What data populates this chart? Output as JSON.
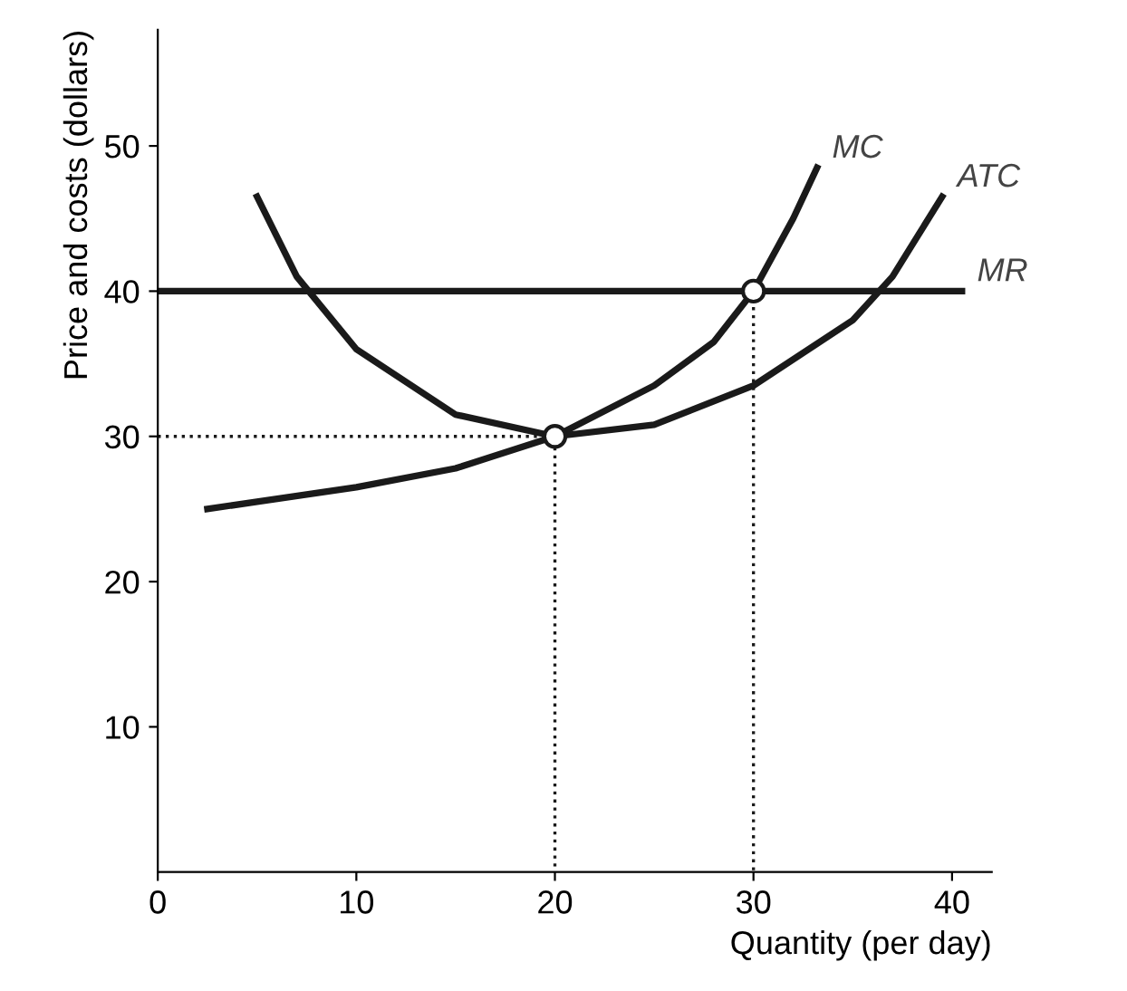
{
  "chart_data": {
    "type": "line",
    "xlabel": "Quantity (per day)",
    "ylabel": "Price and costs (dollars)",
    "xlim": [
      0,
      42
    ],
    "ylim": [
      0,
      58
    ],
    "xticks": [
      0,
      10,
      20,
      30,
      40
    ],
    "yticks": [
      10,
      20,
      30,
      40,
      50
    ],
    "grid": false,
    "legend": false,
    "line_style": "solid",
    "series": [
      {
        "name": "MC",
        "color": "#1a1a1a",
        "x": [
          2.5,
          5,
          10,
          15,
          20,
          25,
          28,
          30,
          32,
          33.2
        ],
        "values": [
          25,
          25.5,
          26.5,
          27.8,
          30,
          33.5,
          36.5,
          40,
          45,
          48.5
        ]
      },
      {
        "name": "ATC",
        "color": "#1a1a1a",
        "x": [
          5,
          7,
          10,
          15,
          20,
          25,
          30,
          35,
          37,
          39.5
        ],
        "values": [
          46.5,
          41,
          36,
          31.5,
          30,
          30.8,
          33.5,
          38,
          41,
          46.5
        ]
      },
      {
        "name": "MR",
        "color": "#1a1a1a",
        "x": [
          0,
          40.5
        ],
        "values": [
          40,
          40
        ]
      },
      {
        "color": "#1a1a1a",
        "line_style": "dotted",
        "x": [
          0,
          20,
          20
        ],
        "values": [
          30,
          30,
          0
        ]
      },
      {
        "color": "#1a1a1a",
        "line_style": "dotted",
        "x": [
          30,
          30
        ],
        "values": [
          40,
          0
        ]
      },
      {
        "type": "scatter",
        "marker": "circle",
        "color": "#1a1a1a",
        "x": [
          20,
          30
        ],
        "values": [
          30,
          40
        ]
      }
    ]
  }
}
